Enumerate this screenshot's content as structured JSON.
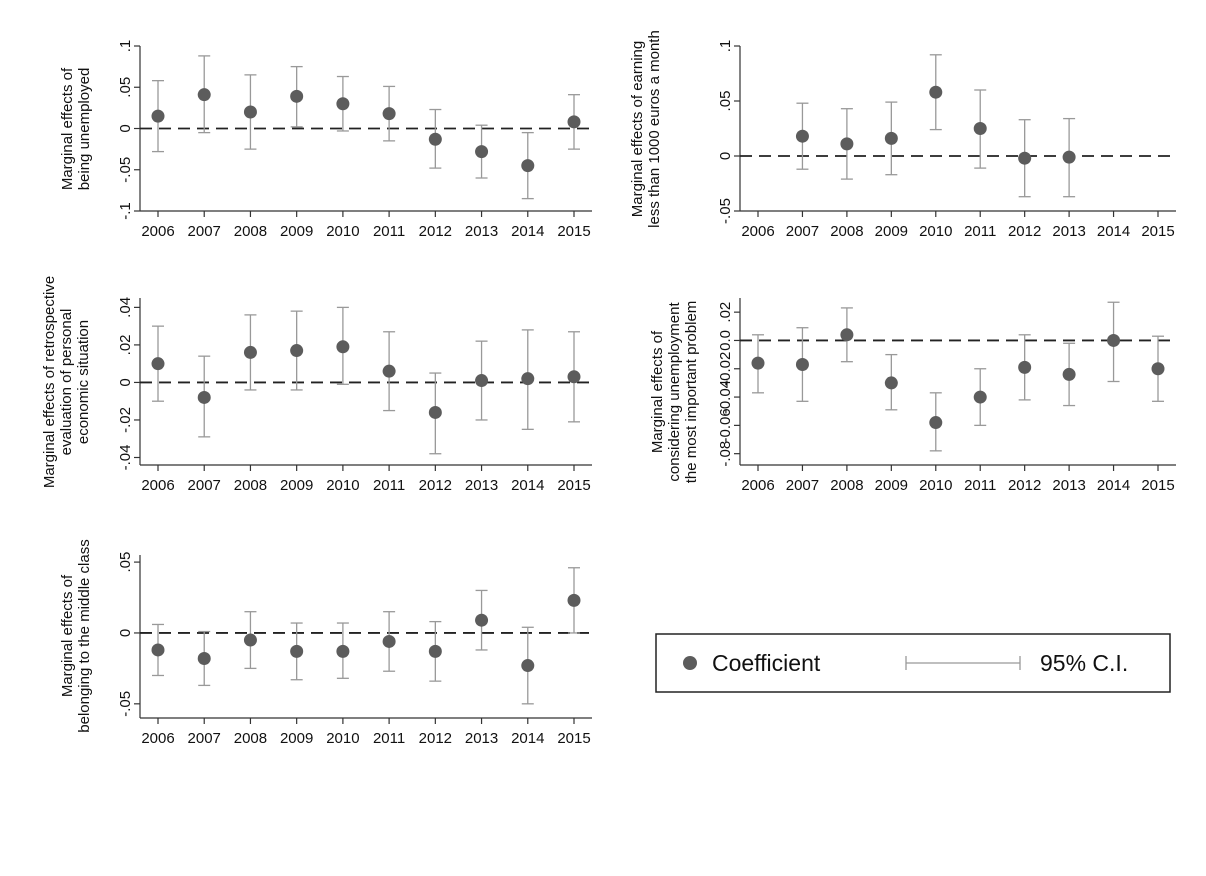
{
  "chart_data": [
    {
      "type": "scatter",
      "ylabel_lines": [
        "Marginal effects of",
        "being unemployed"
      ],
      "categories": [
        "2006",
        "2007",
        "2008",
        "2009",
        "2010",
        "2011",
        "2012",
        "2013",
        "2014",
        "2015"
      ],
      "ylim": [
        -0.1,
        0.1
      ],
      "yticks": [
        -0.1,
        -0.05,
        0,
        0.05,
        0.1
      ],
      "ytick_labels": [
        "-.1",
        "-.05",
        "0",
        ".05",
        ".1"
      ],
      "series": [
        {
          "values": [
            0.015,
            0.041,
            0.02,
            0.039,
            0.03,
            0.018,
            -0.013,
            -0.028,
            -0.045,
            0.008
          ],
          "ci_low": [
            -0.028,
            -0.005,
            -0.025,
            0.002,
            -0.003,
            -0.015,
            -0.048,
            -0.06,
            -0.085,
            -0.025
          ],
          "ci_high": [
            0.058,
            0.088,
            0.065,
            0.075,
            0.063,
            0.051,
            0.023,
            0.004,
            -0.005,
            0.041
          ]
        }
      ],
      "grid": false
    },
    {
      "type": "scatter",
      "ylabel_lines": [
        "Marginal effects of earning",
        "less than 1000 euros a month"
      ],
      "categories": [
        "2006",
        "2007",
        "2008",
        "2009",
        "2010",
        "2011",
        "2012",
        "2013",
        "2014",
        "2015"
      ],
      "ylim": [
        -0.05,
        0.1
      ],
      "yticks": [
        -0.05,
        0,
        0.05,
        0.1
      ],
      "ytick_labels": [
        "-.05",
        "0",
        ".05",
        ".1"
      ],
      "series": [
        {
          "values": [
            null,
            0.018,
            0.011,
            0.016,
            0.058,
            0.025,
            -0.002,
            -0.001,
            null,
            null
          ],
          "ci_low": [
            null,
            -0.012,
            -0.021,
            -0.017,
            0.024,
            -0.011,
            -0.037,
            -0.037,
            null,
            null
          ],
          "ci_high": [
            null,
            0.048,
            0.043,
            0.049,
            0.092,
            0.06,
            0.033,
            0.034,
            null,
            null
          ]
        }
      ],
      "grid": false
    },
    {
      "type": "scatter",
      "ylabel_lines": [
        "Marginal effects of retrospective",
        "evaluation of personal",
        "economic situation"
      ],
      "categories": [
        "2006",
        "2007",
        "2008",
        "2009",
        "2010",
        "2011",
        "2012",
        "2013",
        "2014",
        "2015"
      ],
      "ylim": [
        -0.044,
        0.045
      ],
      "yticks": [
        -0.04,
        -0.02,
        0,
        0.02,
        0.04
      ],
      "ytick_labels": [
        "-.04",
        "-.02",
        "0",
        ".02",
        ".04"
      ],
      "series": [
        {
          "values": [
            0.01,
            -0.008,
            0.016,
            0.017,
            0.019,
            0.006,
            -0.016,
            0.001,
            0.002,
            0.003
          ],
          "ci_low": [
            -0.01,
            -0.029,
            -0.004,
            -0.004,
            -0.001,
            -0.015,
            -0.038,
            -0.02,
            -0.025,
            -0.021
          ],
          "ci_high": [
            0.03,
            0.014,
            0.036,
            0.038,
            0.04,
            0.027,
            0.005,
            0.022,
            0.028,
            0.027
          ]
        }
      ],
      "grid": false
    },
    {
      "type": "scatter",
      "ylabel_lines": [
        "Marginal effects of",
        "considering unemployment",
        "the most important problem"
      ],
      "categories": [
        "2006",
        "2007",
        "2008",
        "2009",
        "2010",
        "2011",
        "2012",
        "2013",
        "2014",
        "2015"
      ],
      "ylim": [
        -0.088,
        0.03
      ],
      "yticks": [
        0.02,
        0,
        -0.02,
        -0.04,
        -0.06,
        -0.08
      ],
      "ytick_labels": [
        ".02",
        "0.0",
        "-0.02",
        "-0.04",
        "-0.06",
        "-.08"
      ],
      "series": [
        {
          "values": [
            -0.016,
            -0.017,
            0.004,
            -0.03,
            -0.058,
            -0.04,
            -0.019,
            -0.024,
            0.0,
            -0.02
          ],
          "ci_low": [
            -0.037,
            -0.043,
            -0.015,
            -0.049,
            -0.078,
            -0.06,
            -0.042,
            -0.046,
            -0.029,
            -0.043
          ],
          "ci_high": [
            0.004,
            0.009,
            0.023,
            -0.01,
            -0.037,
            -0.02,
            0.004,
            -0.002,
            0.027,
            0.003
          ]
        }
      ],
      "grid": false
    },
    {
      "type": "scatter",
      "ylabel_lines": [
        "Marginal effects of",
        "belonging to the middle class"
      ],
      "categories": [
        "2006",
        "2007",
        "2008",
        "2009",
        "2010",
        "2011",
        "2012",
        "2013",
        "2014",
        "2015"
      ],
      "ylim": [
        -0.06,
        0.055
      ],
      "yticks": [
        -0.05,
        0,
        0.05
      ],
      "ytick_labels": [
        "-.05",
        "0",
        ".05"
      ],
      "series": [
        {
          "values": [
            -0.012,
            -0.018,
            -0.005,
            -0.013,
            -0.013,
            -0.006,
            -0.013,
            0.009,
            -0.023,
            0.023
          ],
          "ci_low": [
            -0.03,
            -0.037,
            -0.025,
            -0.033,
            -0.032,
            -0.027,
            -0.034,
            -0.012,
            -0.05,
            0.0
          ],
          "ci_high": [
            0.006,
            0.001,
            0.015,
            0.007,
            0.007,
            0.015,
            0.008,
            0.03,
            0.004,
            0.046
          ]
        }
      ],
      "grid": false
    }
  ],
  "legend": {
    "marker_label": "Coefficient",
    "ci_label": "95% C.I."
  },
  "colors": {
    "point": "#5c5c5c",
    "ci": "#999999",
    "axis": "#333333"
  }
}
